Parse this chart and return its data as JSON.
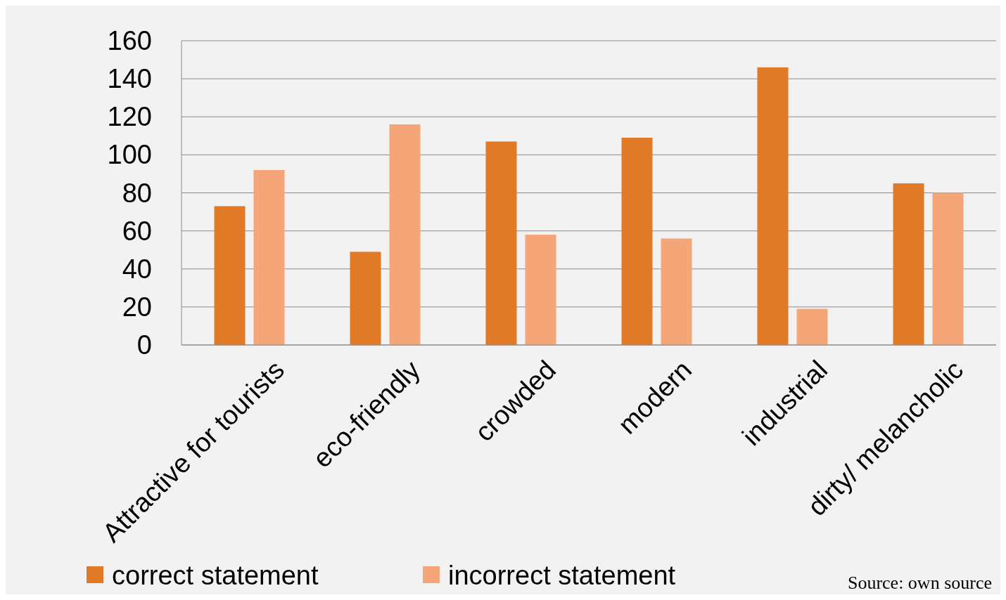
{
  "chart_data": {
    "type": "bar",
    "categories": [
      "Attractive for tourists",
      "eco-friendly",
      "crowded",
      "modern",
      "industrial",
      "dirty/ melancholic"
    ],
    "series": [
      {
        "name": "correct statement",
        "color": "#e07a26",
        "values": [
          73,
          49,
          107,
          109,
          146,
          85
        ]
      },
      {
        "name": "incorrect statement",
        "color": "#f5a679",
        "values": [
          92,
          116,
          58,
          56,
          19,
          80
        ]
      }
    ],
    "ylim": [
      0,
      160
    ],
    "yticks": [
      0,
      20,
      40,
      60,
      80,
      100,
      120,
      140,
      160
    ],
    "grid": "y",
    "legend": "bottom",
    "annotations": [
      "Source: own source"
    ]
  }
}
